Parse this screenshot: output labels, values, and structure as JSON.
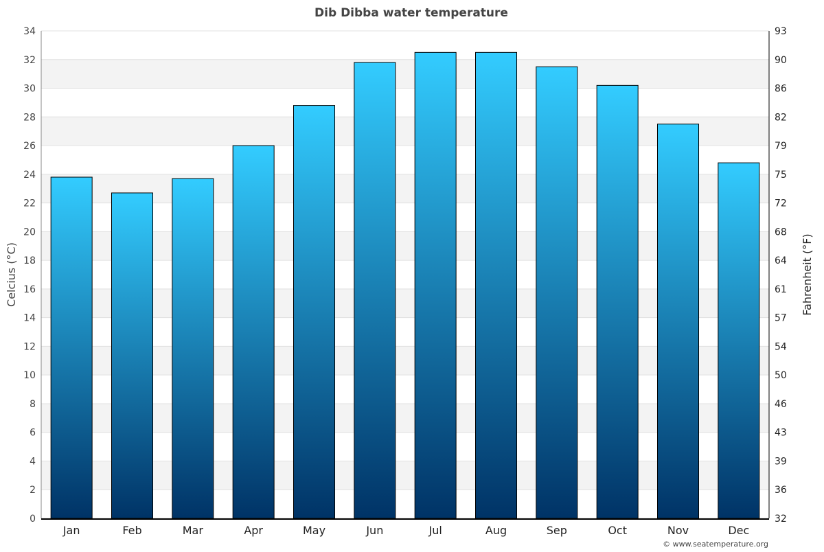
{
  "chart_data": {
    "type": "bar",
    "title": "Dib Dibba water temperature",
    "ylabel": "Celcius (°C)",
    "ylabel_right": "Fahrenheit (°F)",
    "categories": [
      "Jan",
      "Feb",
      "Mar",
      "Apr",
      "May",
      "Jun",
      "Jul",
      "Aug",
      "Sep",
      "Oct",
      "Nov",
      "Dec"
    ],
    "values": [
      23.8,
      22.7,
      23.7,
      26.0,
      28.8,
      31.8,
      32.5,
      32.5,
      31.5,
      30.2,
      27.5,
      24.8
    ],
    "ylim": [
      0,
      34
    ],
    "yticks": [
      0,
      2,
      4,
      6,
      8,
      10,
      12,
      14,
      16,
      18,
      20,
      22,
      24,
      26,
      28,
      30,
      32,
      34
    ],
    "yticks_right": [
      "32",
      "36",
      "39",
      "43",
      "46",
      "50",
      "54",
      "57",
      "61",
      "64",
      "68",
      "72",
      "75",
      "79",
      "82",
      "86",
      "90",
      "93"
    ],
    "grid": true,
    "colors": {
      "bar_top": "#33ccff",
      "bar_bottom": "#003366",
      "band": "#f3f3f3",
      "title": "#444444"
    }
  },
  "credit": "© www.seatemperature.org"
}
